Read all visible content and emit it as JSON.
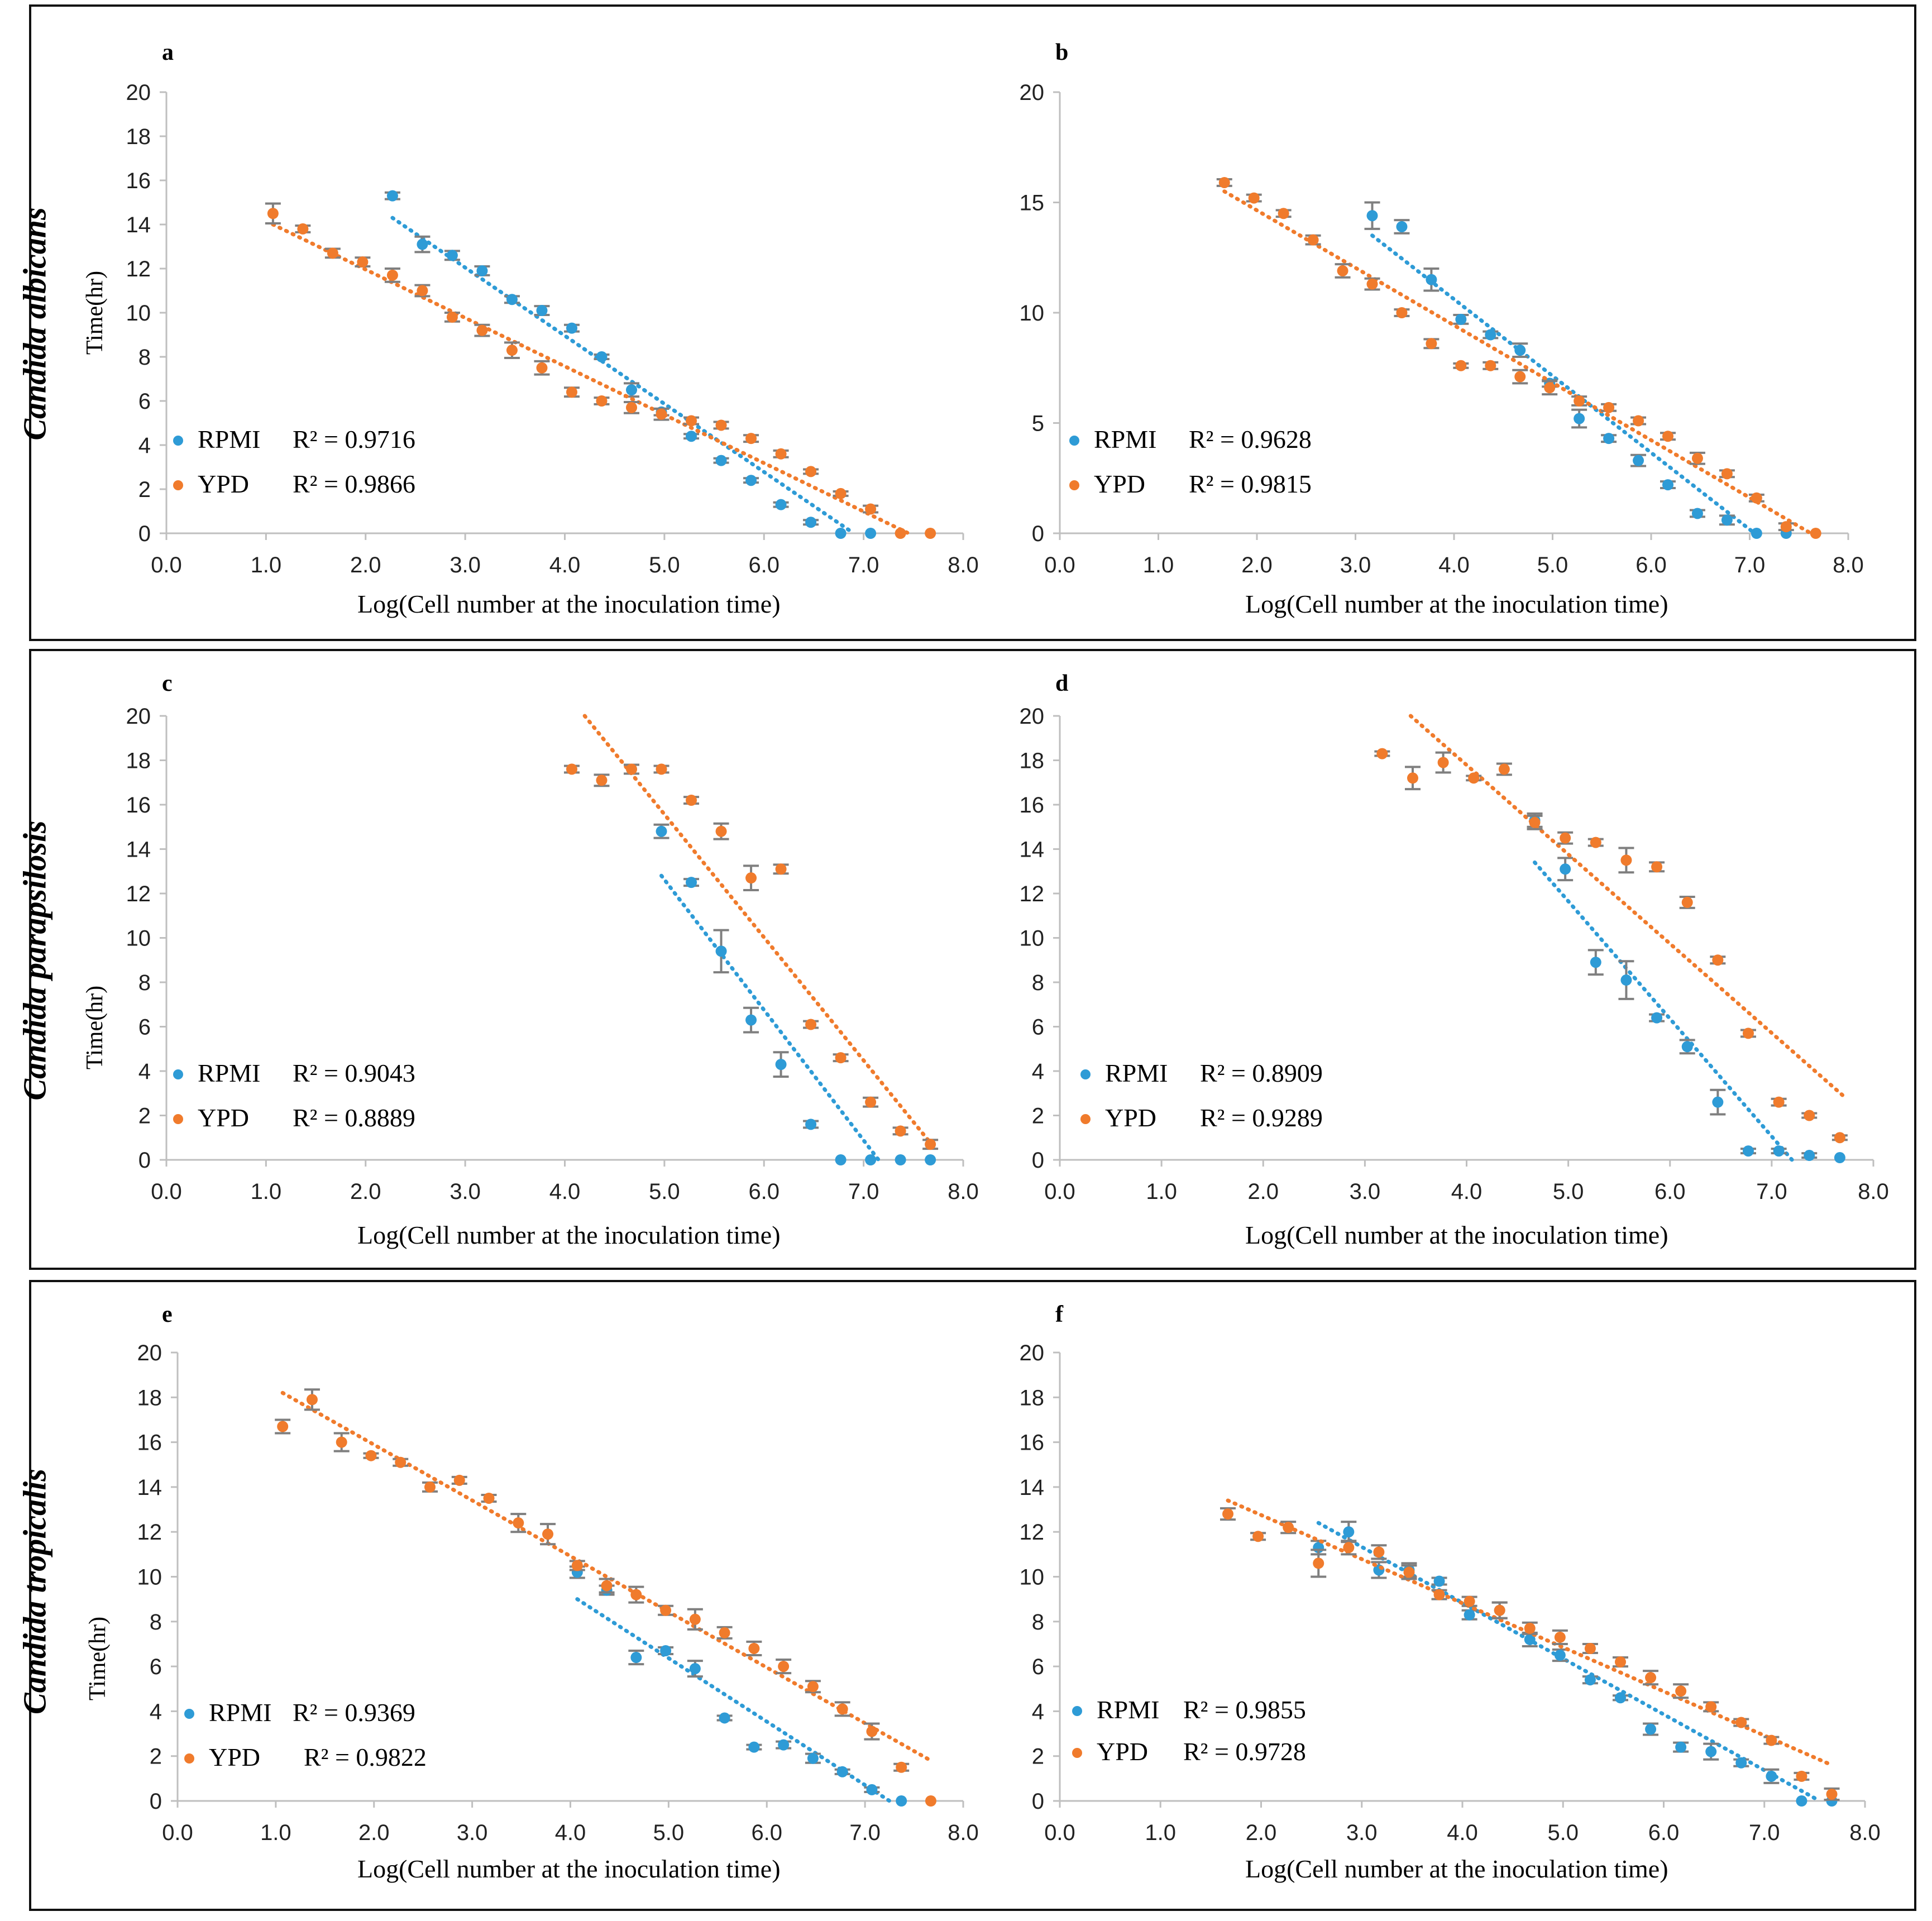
{
  "colors": {
    "rpmi": "#2e9bd6",
    "ypd": "#f07b2c",
    "errorbar": "#7f7f7f",
    "axis": "#bfbfbf"
  },
  "rows": [
    {
      "species": "Candida albicans"
    },
    {
      "species": "Candida parapsilosis"
    },
    {
      "species": "Candida tropicalis"
    }
  ],
  "chart_data": [
    {
      "type": "scatter",
      "panel": "a",
      "xlabel": "Log(Cell number at the inoculation time)",
      "ylabel": "Time(hr)",
      "xlim": [
        0,
        8
      ],
      "ylim": [
        0,
        20
      ],
      "xticks": [
        "0.0",
        "1.0",
        "2.0",
        "3.0",
        "4.0",
        "5.0",
        "6.0",
        "7.0",
        "8.0"
      ],
      "yticks": [
        "0",
        "2",
        "4",
        "6",
        "8",
        "10",
        "12",
        "14",
        "16",
        "18",
        "20"
      ],
      "legend": [
        {
          "name": "RPMI",
          "r2": "R² = 0.9716"
        },
        {
          "name": "YPD",
          "r2": "R² = 0.9866"
        }
      ],
      "series": [
        {
          "name": "RPMI",
          "color": "#2e9bd6",
          "x": [
            2.27,
            2.57,
            2.87,
            3.17,
            3.47,
            3.77,
            4.07,
            4.37,
            4.67,
            4.97,
            5.27,
            5.57,
            5.87,
            6.17,
            6.47,
            6.77,
            7.07
          ],
          "y": [
            15.3,
            13.1,
            12.6,
            11.9,
            10.6,
            10.1,
            9.3,
            8.0,
            6.5,
            5.5,
            4.4,
            3.3,
            2.4,
            1.3,
            0.5,
            0.0,
            0.0
          ],
          "err": [
            0.15,
            0.35,
            0.2,
            0.2,
            0.15,
            0.2,
            0.15,
            0.1,
            0.3,
            0.15,
            0.1,
            0.1,
            0.1,
            0.1,
            0.1,
            0.0,
            0.0
          ],
          "trend": [
            [
              2.27,
              14.3
            ],
            [
              6.9,
              0.0
            ]
          ]
        },
        {
          "name": "YPD",
          "color": "#f07b2c",
          "x": [
            1.07,
            1.37,
            1.67,
            1.97,
            2.27,
            2.57,
            2.87,
            3.17,
            3.47,
            3.77,
            4.07,
            4.37,
            4.67,
            4.97,
            5.27,
            5.57,
            5.87,
            6.17,
            6.47,
            6.77,
            7.07,
            7.37,
            7.67
          ],
          "y": [
            14.5,
            13.8,
            12.7,
            12.3,
            11.7,
            11.0,
            9.8,
            9.2,
            8.3,
            7.5,
            6.4,
            6.0,
            5.7,
            5.4,
            5.1,
            4.9,
            4.3,
            3.6,
            2.8,
            1.8,
            1.1,
            0.0,
            0.0
          ],
          "err": [
            0.45,
            0.15,
            0.2,
            0.2,
            0.3,
            0.25,
            0.2,
            0.25,
            0.35,
            0.3,
            0.2,
            0.15,
            0.25,
            0.25,
            0.15,
            0.15,
            0.15,
            0.15,
            0.1,
            0.1,
            0.15,
            0.0,
            0.0
          ],
          "trend": [
            [
              1.07,
              14.0
            ],
            [
              7.45,
              0.0
            ]
          ]
        }
      ]
    },
    {
      "type": "scatter",
      "panel": "b",
      "xlabel": "Log(Cell number at the inoculation time)",
      "ylabel": "",
      "xlim": [
        0,
        8
      ],
      "ylim": [
        0,
        20
      ],
      "xticks": [
        "0.0",
        "1.0",
        "2.0",
        "3.0",
        "4.0",
        "5.0",
        "6.0",
        "7.0",
        "8.0"
      ],
      "yticks": [
        "0",
        "5",
        "10",
        "15",
        "20"
      ],
      "legend": [
        {
          "name": "RPMI",
          "r2": "R² = 0.9628"
        },
        {
          "name": "YPD",
          "r2": "R² = 0.9815"
        }
      ],
      "series": [
        {
          "name": "RPMI",
          "color": "#2e9bd6",
          "x": [
            3.17,
            3.47,
            3.77,
            4.07,
            4.37,
            4.67,
            4.97,
            5.27,
            5.57,
            5.87,
            6.17,
            6.47,
            6.77,
            7.07,
            7.37
          ],
          "y": [
            14.4,
            13.9,
            11.5,
            9.7,
            9.0,
            8.3,
            6.8,
            5.2,
            4.3,
            3.3,
            2.2,
            0.9,
            0.6,
            0.0,
            0.0
          ],
          "err": [
            0.6,
            0.3,
            0.5,
            0.2,
            0.15,
            0.3,
            0.15,
            0.4,
            0.15,
            0.25,
            0.15,
            0.15,
            0.2,
            0.0,
            0.0
          ],
          "trend": [
            [
              3.17,
              13.5
            ],
            [
              7.05,
              0.0
            ]
          ]
        },
        {
          "name": "YPD",
          "color": "#f07b2c",
          "x": [
            1.67,
            1.97,
            2.27,
            2.57,
            2.87,
            3.17,
            3.47,
            3.77,
            4.07,
            4.37,
            4.67,
            4.97,
            5.27,
            5.57,
            5.87,
            6.17,
            6.47,
            6.77,
            7.07,
            7.37,
            7.67
          ],
          "y": [
            15.9,
            15.2,
            14.5,
            13.3,
            11.9,
            11.3,
            10.0,
            8.6,
            7.6,
            7.6,
            7.1,
            6.6,
            6.0,
            5.7,
            5.1,
            4.4,
            3.4,
            2.7,
            1.6,
            0.3,
            0.0
          ],
          "err": [
            0.15,
            0.15,
            0.15,
            0.2,
            0.3,
            0.25,
            0.15,
            0.2,
            0.1,
            0.15,
            0.3,
            0.3,
            0.2,
            0.15,
            0.15,
            0.15,
            0.25,
            0.15,
            0.15,
            0.15,
            0.0
          ],
          "trend": [
            [
              1.67,
              15.5
            ],
            [
              7.62,
              0.0
            ]
          ]
        }
      ]
    },
    {
      "type": "scatter",
      "panel": "c",
      "xlabel": "Log(Cell number at the inoculation time)",
      "ylabel": "Time(hr)",
      "xlim": [
        0,
        8
      ],
      "ylim": [
        0,
        20
      ],
      "xticks": [
        "0.0",
        "1.0",
        "2.0",
        "3.0",
        "4.0",
        "5.0",
        "6.0",
        "7.0",
        "8.0"
      ],
      "yticks": [
        "0",
        "2",
        "4",
        "6",
        "8",
        "10",
        "12",
        "14",
        "16",
        "18",
        "20"
      ],
      "legend": [
        {
          "name": "RPMI",
          "r2": "R² = 0.9043"
        },
        {
          "name": "YPD",
          "r2": "R² = 0.8889"
        }
      ],
      "series": [
        {
          "name": "RPMI",
          "color": "#2e9bd6",
          "x": [
            4.97,
            5.27,
            5.57,
            5.87,
            6.17,
            6.47,
            6.77,
            7.07,
            7.37,
            7.67
          ],
          "y": [
            14.8,
            12.5,
            9.4,
            6.3,
            4.3,
            1.6,
            0.0,
            0.0,
            0.0,
            0.0
          ],
          "err": [
            0.3,
            0.15,
            0.95,
            0.55,
            0.55,
            0.15,
            0.0,
            0.0,
            0.0,
            0.0
          ],
          "trend": [
            [
              4.97,
              12.8
            ],
            [
              7.15,
              0.0
            ]
          ]
        },
        {
          "name": "YPD",
          "color": "#f07b2c",
          "x": [
            4.07,
            4.37,
            4.67,
            4.97,
            5.27,
            5.57,
            5.87,
            6.17,
            6.47,
            6.77,
            7.07,
            7.37,
            7.67
          ],
          "y": [
            17.6,
            17.1,
            17.6,
            17.6,
            16.2,
            14.8,
            12.7,
            13.1,
            6.1,
            4.6,
            2.6,
            1.3,
            0.7
          ],
          "err": [
            0.15,
            0.25,
            0.2,
            0.15,
            0.15,
            0.35,
            0.55,
            0.2,
            0.15,
            0.15,
            0.2,
            0.15,
            0.2
          ],
          "trend": [
            [
              4.2,
              20.0
            ],
            [
              7.7,
              0.6
            ]
          ]
        }
      ]
    },
    {
      "type": "scatter",
      "panel": "d",
      "xlabel": "Log(Cell number at the inoculation time)",
      "ylabel": "",
      "xlim": [
        0,
        8
      ],
      "ylim": [
        0,
        20
      ],
      "xticks": [
        "0.0",
        "1.0",
        "2.0",
        "3.0",
        "4.0",
        "5.0",
        "6.0",
        "7.0",
        "8.0"
      ],
      "yticks": [
        "0",
        "2",
        "4",
        "6",
        "8",
        "10",
        "12",
        "14",
        "16",
        "18",
        "20"
      ],
      "legend": [
        {
          "name": "RPMI",
          "r2": "R² = 0.8909"
        },
        {
          "name": "YPD",
          "r2": "R² = 0.9289"
        }
      ],
      "series": [
        {
          "name": "RPMI",
          "color": "#2e9bd6",
          "x": [
            4.67,
            4.97,
            5.27,
            5.57,
            5.87,
            6.17,
            6.47,
            6.77,
            7.07,
            7.37,
            7.67
          ],
          "y": [
            15.3,
            13.1,
            8.9,
            8.1,
            6.4,
            5.1,
            2.6,
            0.4,
            0.4,
            0.2,
            0.1
          ],
          "err": [
            0.3,
            0.5,
            0.55,
            0.85,
            0.15,
            0.3,
            0.55,
            0.1,
            0.1,
            0.1,
            0.0
          ],
          "trend": [
            [
              4.67,
              13.4
            ],
            [
              7.2,
              0.0
            ]
          ]
        },
        {
          "name": "YPD",
          "color": "#f07b2c",
          "x": [
            3.17,
            3.47,
            3.77,
            4.07,
            4.37,
            4.67,
            4.97,
            5.27,
            5.57,
            5.87,
            6.17,
            6.47,
            6.77,
            7.07,
            7.37,
            7.67
          ],
          "y": [
            18.3,
            17.2,
            17.9,
            17.2,
            17.6,
            15.2,
            14.5,
            14.3,
            13.5,
            13.2,
            11.6,
            9.0,
            5.7,
            2.6,
            2.0,
            1.0
          ],
          "err": [
            0.1,
            0.5,
            0.45,
            0.1,
            0.25,
            0.3,
            0.25,
            0.15,
            0.55,
            0.2,
            0.25,
            0.15,
            0.15,
            0.15,
            0.1,
            0.1
          ],
          "trend": [
            [
              3.45,
              20.0
            ],
            [
              7.7,
              2.9
            ]
          ]
        }
      ]
    },
    {
      "type": "scatter",
      "panel": "e",
      "xlabel": "Log(Cell number at the inoculation time)",
      "ylabel": "Time(hr)",
      "xlim": [
        0,
        8
      ],
      "ylim": [
        0,
        20
      ],
      "xticks": [
        "0.0",
        "1.0",
        "2.0",
        "3.0",
        "4.0",
        "5.0",
        "6.0",
        "7.0",
        "8.0"
      ],
      "yticks": [
        "0",
        "2",
        "4",
        "6",
        "8",
        "10",
        "12",
        "14",
        "16",
        "18",
        "20"
      ],
      "legend": [
        {
          "name": "RPMI",
          "r2": "R² = 0.9369"
        },
        {
          "name": "YPD",
          "r2": "R² = 0.9822"
        }
      ],
      "series": [
        {
          "name": "RPMI",
          "color": "#2e9bd6",
          "x": [
            4.07,
            4.37,
            4.67,
            4.97,
            5.27,
            5.57,
            5.87,
            6.17,
            6.47,
            6.77,
            7.07,
            7.37
          ],
          "y": [
            10.2,
            9.4,
            6.4,
            6.7,
            5.9,
            3.7,
            2.4,
            2.5,
            1.9,
            1.3,
            0.5,
            0.0
          ],
          "err": [
            0.25,
            0.2,
            0.3,
            0.15,
            0.35,
            0.1,
            0.1,
            0.15,
            0.2,
            0.1,
            0.1,
            0.0
          ],
          "trend": [
            [
              4.07,
              9.0
            ],
            [
              7.25,
              0.0
            ]
          ]
        },
        {
          "name": "YPD",
          "color": "#f07b2c",
          "x": [
            1.07,
            1.37,
            1.67,
            1.97,
            2.27,
            2.57,
            2.87,
            3.17,
            3.47,
            3.77,
            4.07,
            4.37,
            4.67,
            4.97,
            5.27,
            5.57,
            5.87,
            6.17,
            6.47,
            6.77,
            7.07,
            7.37,
            7.67
          ],
          "y": [
            16.7,
            17.9,
            16.0,
            15.4,
            15.1,
            14.0,
            14.3,
            13.5,
            12.4,
            11.9,
            10.5,
            9.6,
            9.2,
            8.5,
            8.1,
            7.5,
            6.8,
            6.0,
            5.1,
            4.1,
            3.1,
            1.5,
            0.0
          ],
          "err": [
            0.3,
            0.45,
            0.4,
            0.1,
            0.15,
            0.2,
            0.15,
            0.15,
            0.4,
            0.45,
            0.2,
            0.3,
            0.35,
            0.2,
            0.45,
            0.25,
            0.3,
            0.3,
            0.25,
            0.3,
            0.35,
            0.15,
            0.0
          ],
          "trend": [
            [
              1.07,
              18.2
            ],
            [
              7.67,
              1.8
            ]
          ]
        }
      ]
    },
    {
      "type": "scatter",
      "panel": "f",
      "xlabel": "Log(Cell number at the inoculation time)",
      "ylabel": "",
      "xlim": [
        0,
        8
      ],
      "ylim": [
        0,
        20
      ],
      "xticks": [
        "0.0",
        "1.0",
        "2.0",
        "3.0",
        "4.0",
        "5.0",
        "6.0",
        "7.0",
        "8.0"
      ],
      "yticks": [
        "0",
        "2",
        "4",
        "6",
        "8",
        "10",
        "12",
        "14",
        "16",
        "18",
        "20"
      ],
      "legend": [
        {
          "name": "RPMI",
          "r2": "R² = 0.9855"
        },
        {
          "name": "YPD",
          "r2": "R² = 0.9728"
        }
      ],
      "series": [
        {
          "name": "RPMI",
          "color": "#2e9bd6",
          "x": [
            2.57,
            2.87,
            3.17,
            3.47,
            3.77,
            4.07,
            4.37,
            4.67,
            4.97,
            5.27,
            5.57,
            5.87,
            6.17,
            6.47,
            6.77,
            7.07,
            7.37,
            7.67
          ],
          "y": [
            11.3,
            12.0,
            10.3,
            10.3,
            9.8,
            8.3,
            8.5,
            7.2,
            6.5,
            5.4,
            4.6,
            3.2,
            2.4,
            2.2,
            1.7,
            1.1,
            0.0,
            0.0
          ],
          "err": [
            0.3,
            0.45,
            0.35,
            0.3,
            0.15,
            0.2,
            0.35,
            0.3,
            0.25,
            0.15,
            0.1,
            0.25,
            0.2,
            0.35,
            0.15,
            0.3,
            0.0,
            0.0
          ],
          "trend": [
            [
              2.57,
              12.4
            ],
            [
              7.55,
              0.0
            ]
          ]
        },
        {
          "name": "YPD",
          "color": "#f07b2c",
          "x": [
            1.67,
            1.97,
            2.27,
            2.57,
            2.87,
            3.17,
            3.47,
            3.77,
            4.07,
            4.37,
            4.67,
            4.97,
            5.27,
            5.57,
            5.87,
            6.17,
            6.47,
            6.77,
            7.07,
            7.37,
            7.67
          ],
          "y": [
            12.8,
            11.8,
            12.2,
            10.6,
            11.3,
            11.1,
            10.2,
            9.2,
            8.9,
            8.5,
            7.7,
            7.3,
            6.8,
            6.2,
            5.5,
            4.9,
            4.2,
            3.5,
            2.7,
            1.1,
            0.3
          ],
          "err": [
            0.25,
            0.15,
            0.25,
            0.6,
            0.3,
            0.3,
            0.3,
            0.2,
            0.2,
            0.35,
            0.25,
            0.3,
            0.2,
            0.2,
            0.3,
            0.3,
            0.2,
            0.15,
            0.15,
            0.15,
            0.25
          ],
          "trend": [
            [
              1.67,
              13.4
            ],
            [
              7.67,
              1.6
            ]
          ]
        }
      ]
    }
  ]
}
